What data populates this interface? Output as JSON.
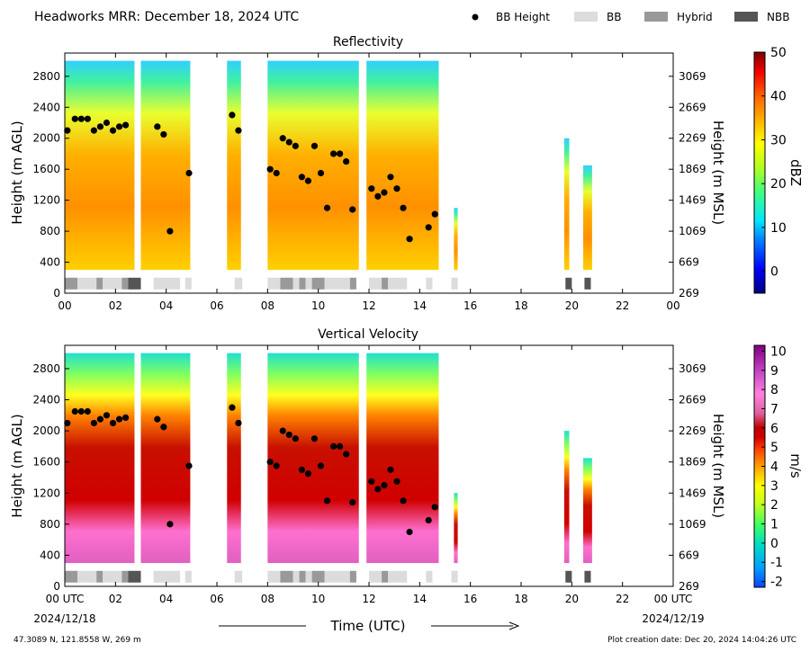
{
  "header": {
    "title": "Headworks MRR:  December 18, 2024 UTC"
  },
  "legend": {
    "items": [
      {
        "label": "BB Height",
        "kind": "dot",
        "color": "#000000"
      },
      {
        "label": "BB",
        "kind": "bar",
        "color": "#dcdcdc"
      },
      {
        "label": "Hybrid",
        "kind": "bar",
        "color": "#999999"
      },
      {
        "label": "NBB",
        "kind": "bar",
        "color": "#555555"
      }
    ]
  },
  "footer": {
    "location": "47.3089 N, 121.8558 W, 269 m",
    "creation": "Plot creation date: Dec 20, 2024 14:04:26 UTC",
    "xlabel": "Time (UTC)",
    "start_date": "2024/12/18",
    "end_date": "2024/12/19"
  },
  "chart_data": [
    {
      "type": "heatmap",
      "title": "Reflectivity",
      "xlabel": "",
      "ylabel": "Height (m AGL)",
      "ylabel_right": "Height (m MSL)",
      "colorbar_label": "dBZ",
      "xlim": [
        0,
        24
      ],
      "ylim": [
        0,
        3100
      ],
      "yticks": [
        0,
        400,
        800,
        1200,
        1600,
        2000,
        2400,
        2800
      ],
      "yticks_right": [
        269,
        669,
        1069,
        1469,
        1869,
        2269,
        2669,
        3069
      ],
      "xtick_labels": [
        "00",
        "02",
        "04",
        "06",
        "08",
        "10",
        "12",
        "14",
        "16",
        "18",
        "20",
        "22",
        "00"
      ],
      "colorbar_ticks": [
        0,
        10,
        20,
        30,
        40,
        50
      ],
      "colorbar_range": [
        -5,
        50
      ],
      "echo_segments": [
        {
          "start": 0.0,
          "end": 2.75,
          "top": 3000,
          "value": 35
        },
        {
          "start": 3.0,
          "end": 4.95,
          "top": 3000,
          "value": 27
        },
        {
          "start": 6.4,
          "end": 6.95,
          "top": 3000,
          "value": 30
        },
        {
          "start": 8.0,
          "end": 11.6,
          "top": 3000,
          "value": 38
        },
        {
          "start": 11.9,
          "end": 14.75,
          "top": 3000,
          "value": 30
        },
        {
          "start": 15.35,
          "end": 15.5,
          "top": 1100,
          "value": 15
        },
        {
          "start": 19.7,
          "end": 19.9,
          "top": 2000,
          "value": 17
        },
        {
          "start": 20.45,
          "end": 20.8,
          "top": 1650,
          "value": 12
        }
      ],
      "bright_band_height": [
        {
          "t": 0.1,
          "h": 2100
        },
        {
          "t": 0.4,
          "h": 2250
        },
        {
          "t": 0.65,
          "h": 2250
        },
        {
          "t": 0.9,
          "h": 2250
        },
        {
          "t": 1.15,
          "h": 2100
        },
        {
          "t": 1.4,
          "h": 2150
        },
        {
          "t": 1.65,
          "h": 2200
        },
        {
          "t": 1.9,
          "h": 2100
        },
        {
          "t": 2.15,
          "h": 2150
        },
        {
          "t": 2.4,
          "h": 2170
        },
        {
          "t": 3.65,
          "h": 2150
        },
        {
          "t": 3.9,
          "h": 2050
        },
        {
          "t": 4.15,
          "h": 800
        },
        {
          "t": 4.9,
          "h": 1550
        },
        {
          "t": 6.6,
          "h": 2300
        },
        {
          "t": 6.85,
          "h": 2100
        },
        {
          "t": 8.1,
          "h": 1600
        },
        {
          "t": 8.35,
          "h": 1550
        },
        {
          "t": 8.6,
          "h": 2000
        },
        {
          "t": 8.85,
          "h": 1950
        },
        {
          "t": 9.1,
          "h": 1900
        },
        {
          "t": 9.35,
          "h": 1500
        },
        {
          "t": 9.6,
          "h": 1450
        },
        {
          "t": 9.85,
          "h": 1900
        },
        {
          "t": 10.1,
          "h": 1550
        },
        {
          "t": 10.35,
          "h": 1100
        },
        {
          "t": 10.6,
          "h": 1800
        },
        {
          "t": 10.85,
          "h": 1800
        },
        {
          "t": 11.1,
          "h": 1700
        },
        {
          "t": 11.35,
          "h": 1080
        },
        {
          "t": 12.1,
          "h": 1350
        },
        {
          "t": 12.35,
          "h": 1250
        },
        {
          "t": 12.6,
          "h": 1300
        },
        {
          "t": 12.85,
          "h": 1500
        },
        {
          "t": 13.1,
          "h": 1350
        },
        {
          "t": 13.35,
          "h": 1100
        },
        {
          "t": 13.6,
          "h": 700
        },
        {
          "t": 14.35,
          "h": 850
        },
        {
          "t": 14.6,
          "h": 1020
        }
      ],
      "band_classification": [
        {
          "start": 0.0,
          "end": 0.5,
          "class": "Hybrid"
        },
        {
          "start": 0.5,
          "end": 1.25,
          "class": "BB"
        },
        {
          "start": 1.25,
          "end": 1.5,
          "class": "Hybrid"
        },
        {
          "start": 1.5,
          "end": 2.25,
          "class": "BB"
        },
        {
          "start": 2.25,
          "end": 2.5,
          "class": "Hybrid"
        },
        {
          "start": 2.5,
          "end": 3.0,
          "class": "NBB"
        },
        {
          "start": 3.5,
          "end": 4.55,
          "class": "BB"
        },
        {
          "start": 4.75,
          "end": 5.0,
          "class": "BB"
        },
        {
          "start": 6.7,
          "end": 7.0,
          "class": "BB"
        },
        {
          "start": 8.0,
          "end": 8.5,
          "class": "BB"
        },
        {
          "start": 8.5,
          "end": 9.0,
          "class": "Hybrid"
        },
        {
          "start": 9.0,
          "end": 9.25,
          "class": "BB"
        },
        {
          "start": 9.25,
          "end": 9.5,
          "class": "Hybrid"
        },
        {
          "start": 9.5,
          "end": 9.75,
          "class": "BB"
        },
        {
          "start": 9.75,
          "end": 10.25,
          "class": "Hybrid"
        },
        {
          "start": 10.25,
          "end": 11.25,
          "class": "BB"
        },
        {
          "start": 11.25,
          "end": 11.5,
          "class": "Hybrid"
        },
        {
          "start": 12.0,
          "end": 12.5,
          "class": "BB"
        },
        {
          "start": 12.5,
          "end": 12.75,
          "class": "Hybrid"
        },
        {
          "start": 12.75,
          "end": 13.5,
          "class": "BB"
        },
        {
          "start": 14.25,
          "end": 14.5,
          "class": "BB"
        },
        {
          "start": 15.25,
          "end": 15.5,
          "class": "BB"
        },
        {
          "start": 19.75,
          "end": 20.0,
          "class": "NBB"
        },
        {
          "start": 20.5,
          "end": 20.75,
          "class": "NBB"
        }
      ]
    },
    {
      "type": "heatmap",
      "title": "Vertical Velocity",
      "xlabel": "Time (UTC)",
      "ylabel": "Height (m AGL)",
      "ylabel_right": "Height (m MSL)",
      "colorbar_label": "m/s",
      "xlim": [
        0,
        24
      ],
      "ylim": [
        0,
        3100
      ],
      "yticks": [
        0,
        400,
        800,
        1200,
        1600,
        2000,
        2400,
        2800
      ],
      "yticks_right": [
        269,
        669,
        1069,
        1469,
        1869,
        2269,
        2669,
        3069
      ],
      "xtick_labels": [
        "00 UTC",
        "02",
        "04",
        "06",
        "08",
        "10",
        "12",
        "14",
        "16",
        "18",
        "20",
        "22",
        "00 UTC"
      ],
      "colorbar_ticks": [
        -2,
        -1,
        0,
        1,
        2,
        3,
        4,
        5,
        6,
        7,
        8,
        9,
        10
      ],
      "colorbar_range": [
        -2.3,
        10.3
      ],
      "echo_segments": [
        {
          "start": 0.0,
          "end": 2.75,
          "top": 3000,
          "value": 6.5
        },
        {
          "start": 3.0,
          "end": 4.95,
          "top": 3000,
          "value": 5.5
        },
        {
          "start": 6.4,
          "end": 6.95,
          "top": 3000,
          "value": 5.5
        },
        {
          "start": 8.0,
          "end": 11.6,
          "top": 3000,
          "value": 6.8
        },
        {
          "start": 11.9,
          "end": 14.75,
          "top": 3000,
          "value": 6.5
        },
        {
          "start": 15.35,
          "end": 15.5,
          "top": 1200,
          "value": 3.5
        },
        {
          "start": 19.7,
          "end": 19.9,
          "top": 2000,
          "value": 2.5
        },
        {
          "start": 20.45,
          "end": 20.8,
          "top": 1650,
          "value": 2.5
        }
      ]
    }
  ]
}
